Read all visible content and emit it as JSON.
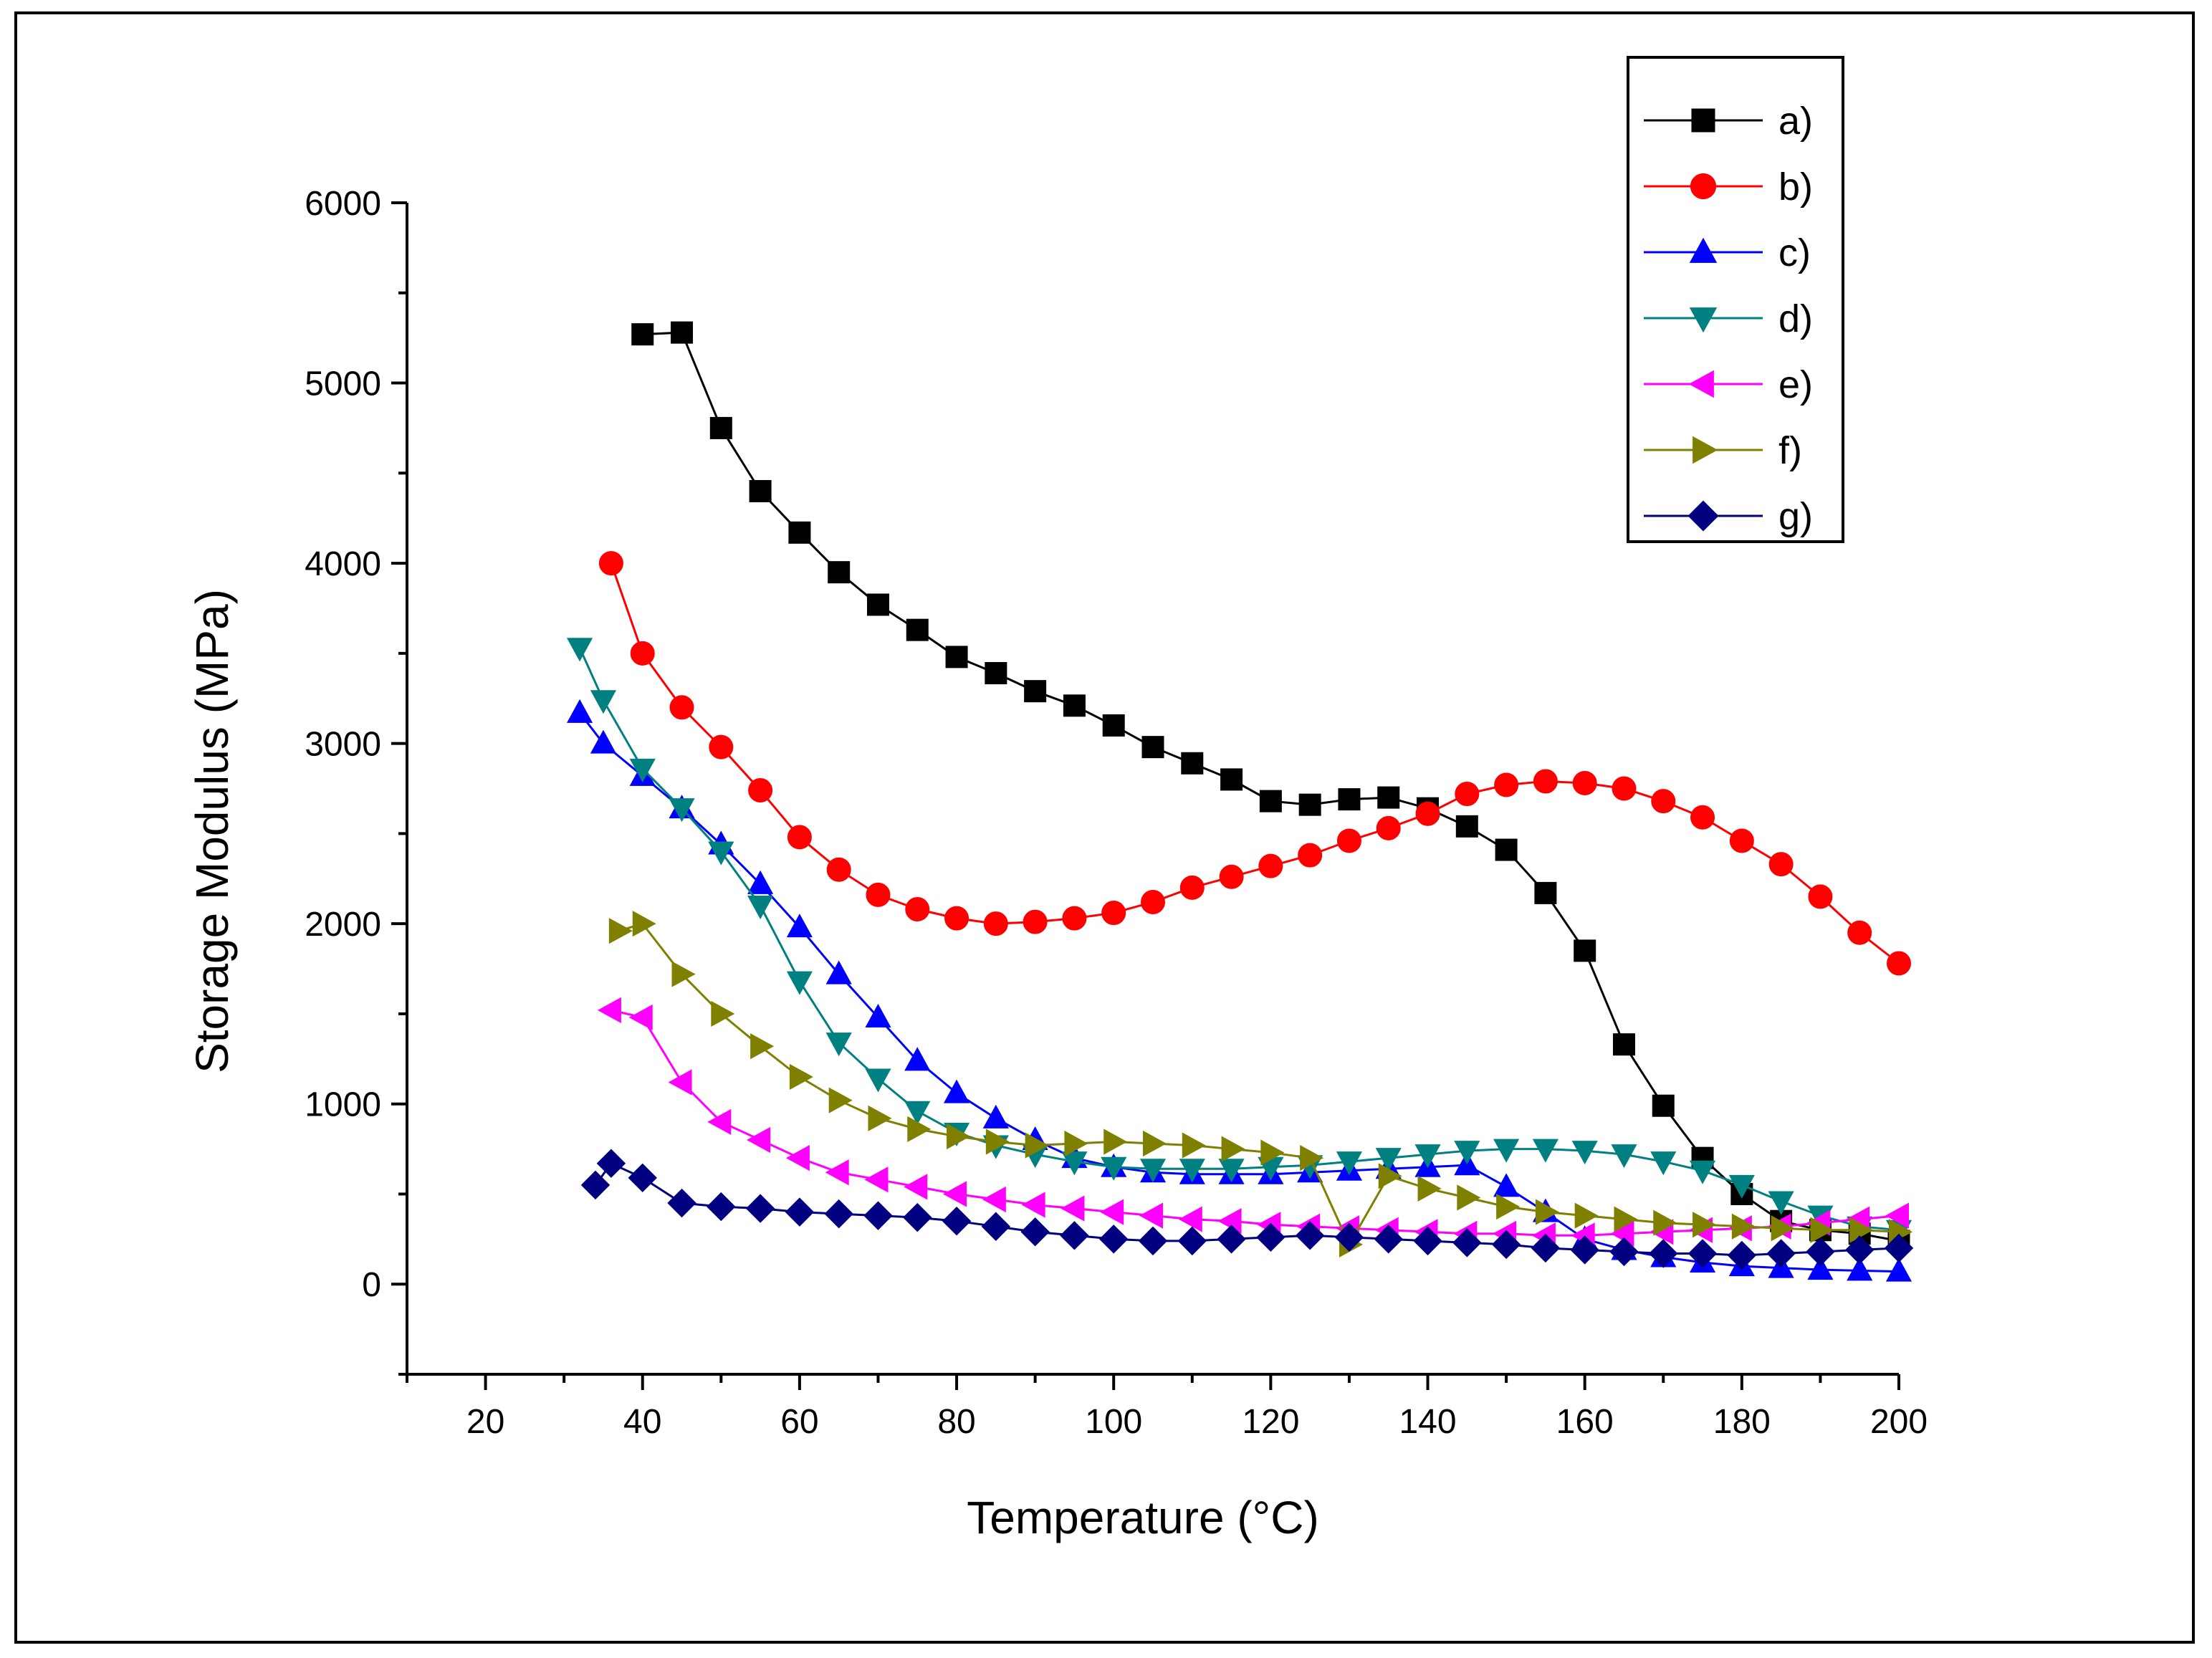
{
  "chart_data": {
    "type": "line",
    "title": "",
    "xlabel": "Temperature (°C)",
    "ylabel": "Storage Modulus (MPa)",
    "xlim": [
      10,
      200
    ],
    "ylim": [
      -500,
      6000
    ],
    "xticks": [
      20,
      40,
      60,
      80,
      100,
      120,
      140,
      160,
      180,
      200
    ],
    "yticks": [
      0,
      1000,
      2000,
      3000,
      4000,
      5000,
      6000
    ],
    "xtick_labels": [
      "20",
      "40",
      "60",
      "80",
      "100",
      "120",
      "140",
      "160",
      "180",
      "200"
    ],
    "ytick_labels": [
      "0",
      "1000",
      "2000",
      "3000",
      "4000",
      "5000",
      "6000"
    ],
    "legend_position": "top-right",
    "series": [
      {
        "name": "a)",
        "color": "#000000",
        "marker": "square",
        "x": [
          40,
          45,
          50,
          55,
          60,
          65,
          70,
          75,
          80,
          85,
          90,
          95,
          100,
          105,
          110,
          115,
          120,
          125,
          130,
          135,
          140,
          145,
          150,
          155,
          160,
          165,
          170,
          175,
          180,
          185,
          190,
          195,
          200
        ],
        "y": [
          5270,
          5280,
          4750,
          4400,
          4170,
          3950,
          3770,
          3630,
          3480,
          3390,
          3290,
          3210,
          3100,
          2980,
          2890,
          2800,
          2680,
          2660,
          2690,
          2700,
          2640,
          2540,
          2410,
          2170,
          1850,
          1330,
          990,
          700,
          500,
          350,
          300,
          280,
          240
        ]
      },
      {
        "name": "b)",
        "color": "#ff0000",
        "marker": "circle",
        "x": [
          36,
          40,
          45,
          50,
          55,
          60,
          65,
          70,
          75,
          80,
          85,
          90,
          95,
          100,
          105,
          110,
          115,
          120,
          125,
          130,
          135,
          140,
          145,
          150,
          155,
          160,
          165,
          170,
          175,
          180,
          185,
          190,
          195,
          200
        ],
        "y": [
          4000,
          3500,
          3200,
          2980,
          2740,
          2480,
          2300,
          2160,
          2080,
          2030,
          2000,
          2010,
          2030,
          2060,
          2120,
          2200,
          2260,
          2320,
          2380,
          2460,
          2530,
          2610,
          2720,
          2770,
          2790,
          2780,
          2750,
          2680,
          2590,
          2460,
          2330,
          2150,
          1950,
          1780
        ]
      },
      {
        "name": "c)",
        "color": "#0000ff",
        "marker": "triangle-up",
        "x": [
          32,
          35,
          40,
          45,
          50,
          55,
          60,
          65,
          70,
          75,
          80,
          85,
          90,
          95,
          100,
          105,
          110,
          115,
          120,
          125,
          130,
          135,
          140,
          145,
          150,
          155,
          160,
          165,
          170,
          175,
          180,
          185,
          190,
          195,
          200
        ],
        "y": [
          3170,
          3000,
          2820,
          2640,
          2440,
          2220,
          1980,
          1720,
          1480,
          1240,
          1060,
          920,
          800,
          700,
          650,
          620,
          610,
          610,
          610,
          620,
          630,
          640,
          650,
          660,
          540,
          400,
          250,
          190,
          150,
          120,
          100,
          90,
          80,
          75,
          70
        ]
      },
      {
        "name": "d)",
        "color": "#008080",
        "marker": "triangle-down",
        "x": [
          32,
          35,
          40,
          45,
          50,
          55,
          60,
          65,
          70,
          75,
          80,
          85,
          90,
          95,
          100,
          105,
          110,
          115,
          120,
          125,
          130,
          135,
          140,
          145,
          150,
          155,
          160,
          165,
          170,
          175,
          180,
          185,
          190,
          195,
          200
        ],
        "y": [
          3530,
          3240,
          2860,
          2640,
          2400,
          2100,
          1680,
          1340,
          1140,
          960,
          840,
          770,
          720,
          680,
          650,
          640,
          640,
          640,
          650,
          660,
          680,
          700,
          720,
          740,
          750,
          750,
          740,
          720,
          680,
          630,
          550,
          460,
          380,
          320,
          300
        ]
      },
      {
        "name": "e)",
        "color": "#ff00ff",
        "marker": "triangle-left",
        "x": [
          36,
          40,
          45,
          50,
          55,
          60,
          65,
          70,
          75,
          80,
          85,
          90,
          95,
          100,
          105,
          110,
          115,
          120,
          125,
          130,
          135,
          140,
          145,
          150,
          155,
          160,
          165,
          170,
          175,
          180,
          185,
          190,
          195,
          200
        ],
        "y": [
          1520,
          1480,
          1120,
          900,
          800,
          700,
          620,
          580,
          540,
          500,
          470,
          440,
          420,
          400,
          380,
          360,
          350,
          330,
          320,
          310,
          300,
          290,
          280,
          280,
          270,
          270,
          280,
          290,
          300,
          310,
          320,
          340,
          360,
          380
        ]
      },
      {
        "name": "f)",
        "color": "#808000",
        "marker": "triangle-right",
        "x": [
          37,
          40,
          45,
          50,
          55,
          60,
          65,
          70,
          75,
          80,
          85,
          90,
          95,
          100,
          105,
          110,
          115,
          120,
          125,
          130,
          135,
          140,
          145,
          150,
          155,
          160,
          165,
          170,
          175,
          180,
          185,
          190,
          195,
          200
        ],
        "y": [
          1960,
          2000,
          1720,
          1500,
          1320,
          1150,
          1020,
          920,
          860,
          820,
          790,
          770,
          780,
          790,
          780,
          770,
          750,
          730,
          700,
          220,
          600,
          530,
          480,
          430,
          400,
          380,
          360,
          340,
          330,
          320,
          310,
          300,
          300,
          290
        ]
      },
      {
        "name": "g)",
        "color": "#000080",
        "marker": "diamond",
        "x": [
          34,
          36,
          40,
          45,
          50,
          55,
          60,
          65,
          70,
          75,
          80,
          85,
          90,
          95,
          100,
          105,
          110,
          115,
          120,
          125,
          130,
          135,
          140,
          145,
          150,
          155,
          160,
          165,
          170,
          175,
          180,
          185,
          190,
          195,
          200
        ],
        "y": [
          550,
          670,
          590,
          450,
          430,
          420,
          400,
          390,
          380,
          370,
          350,
          320,
          290,
          270,
          250,
          240,
          240,
          250,
          260,
          270,
          260,
          250,
          240,
          230,
          220,
          200,
          190,
          180,
          170,
          170,
          160,
          170,
          180,
          190,
          200
        ]
      }
    ]
  }
}
